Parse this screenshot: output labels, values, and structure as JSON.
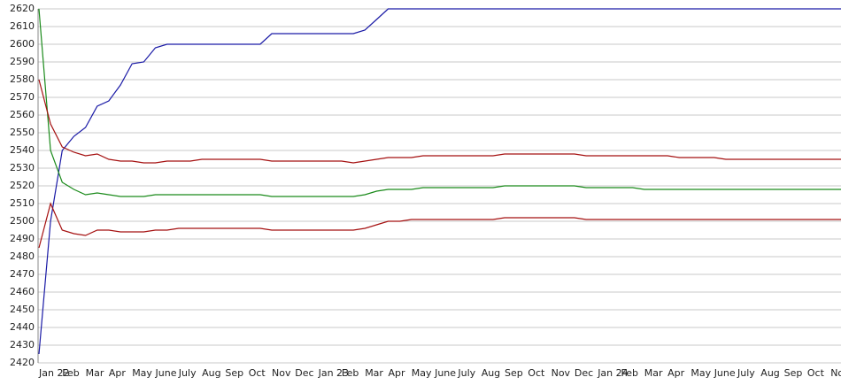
{
  "chart_data": {
    "type": "line",
    "categories": [
      "Jan 22",
      null,
      "Feb",
      null,
      "Mar",
      null,
      "Apr",
      null,
      "May",
      null,
      "June",
      null,
      "July",
      null,
      "Aug",
      null,
      "Sep",
      null,
      "Oct",
      null,
      "Nov",
      null,
      "Dec",
      null,
      "Jan 23",
      null,
      "Feb",
      null,
      "Mar",
      null,
      "Apr",
      null,
      "May",
      null,
      "June",
      null,
      "July",
      null,
      "Aug",
      null,
      "Sep",
      null,
      "Oct",
      null,
      "Nov",
      null,
      "Dec",
      null,
      "Jan 24",
      null,
      "Feb",
      null,
      "Mar",
      null,
      "Apr",
      null,
      "May",
      null,
      "June",
      null,
      "July",
      null,
      "Aug",
      null,
      "Sep",
      null,
      "Oct",
      null,
      "Nov",
      null
    ],
    "series": [
      {
        "color": "#1a1aa6",
        "values": [
          2425,
          2500,
          2540,
          2548,
          2553,
          2565,
          2568,
          2577,
          2589,
          2590,
          2598,
          2600,
          2600,
          2600,
          2600,
          2600,
          2600,
          2600,
          2600,
          2600,
          2606,
          2606,
          2606,
          2606,
          2606,
          2606,
          2606,
          2606,
          2608,
          2614,
          2620,
          2620,
          2620,
          2620,
          2620,
          2620,
          2620,
          2620,
          2620,
          2620,
          2620,
          2620,
          2620,
          2620,
          2620,
          2620,
          2620,
          2620,
          2620,
          2620,
          2620,
          2620,
          2620,
          2620,
          2620,
          2620,
          2620,
          2620,
          2620,
          2620,
          2620,
          2620,
          2620,
          2620,
          2620,
          2620,
          2620,
          2620,
          2620,
          2620
        ]
      },
      {
        "color": "#1a8a1a",
        "values": [
          2620,
          2540,
          2522,
          2518,
          2515,
          2516,
          2515,
          2514,
          2514,
          2514,
          2515,
          2515,
          2515,
          2515,
          2515,
          2515,
          2515,
          2515,
          2515,
          2515,
          2514,
          2514,
          2514,
          2514,
          2514,
          2514,
          2514,
          2514,
          2515,
          2517,
          2518,
          2518,
          2518,
          2519,
          2519,
          2519,
          2519,
          2519,
          2519,
          2519,
          2520,
          2520,
          2520,
          2520,
          2520,
          2520,
          2520,
          2519,
          2519,
          2519,
          2519,
          2519,
          2518,
          2518,
          2518,
          2518,
          2518,
          2518,
          2518,
          2518,
          2518,
          2518,
          2518,
          2518,
          2518,
          2518,
          2518,
          2518,
          2518,
          2518
        ]
      },
      {
        "color": "#a51010",
        "values": [
          2580,
          2555,
          2542,
          2539,
          2537,
          2538,
          2535,
          2534,
          2534,
          2533,
          2533,
          2534,
          2534,
          2534,
          2535,
          2535,
          2535,
          2535,
          2535,
          2535,
          2534,
          2534,
          2534,
          2534,
          2534,
          2534,
          2534,
          2533,
          2534,
          2535,
          2536,
          2536,
          2536,
          2537,
          2537,
          2537,
          2537,
          2537,
          2537,
          2537,
          2538,
          2538,
          2538,
          2538,
          2538,
          2538,
          2538,
          2537,
          2537,
          2537,
          2537,
          2537,
          2537,
          2537,
          2537,
          2536,
          2536,
          2536,
          2536,
          2535,
          2535,
          2535,
          2535,
          2535,
          2535,
          2535,
          2535,
          2535,
          2535,
          2535
        ]
      },
      {
        "color": "#a51010",
        "values": [
          2485,
          2510,
          2495,
          2493,
          2492,
          2495,
          2495,
          2494,
          2494,
          2494,
          2495,
          2495,
          2496,
          2496,
          2496,
          2496,
          2496,
          2496,
          2496,
          2496,
          2495,
          2495,
          2495,
          2495,
          2495,
          2495,
          2495,
          2495,
          2496,
          2498,
          2500,
          2500,
          2501,
          2501,
          2501,
          2501,
          2501,
          2501,
          2501,
          2501,
          2502,
          2502,
          2502,
          2502,
          2502,
          2502,
          2502,
          2501,
          2501,
          2501,
          2501,
          2501,
          2501,
          2501,
          2501,
          2501,
          2501,
          2501,
          2501,
          2501,
          2501,
          2501,
          2501,
          2501,
          2501,
          2501,
          2501,
          2501,
          2501,
          2501
        ]
      }
    ],
    "ylim": [
      2420,
      2620
    ],
    "yticks": [
      2420,
      2430,
      2440,
      2450,
      2460,
      2470,
      2480,
      2490,
      2500,
      2510,
      2520,
      2530,
      2540,
      2550,
      2560,
      2570,
      2580,
      2590,
      2600,
      2610,
      2620
    ],
    "grid": true
  }
}
